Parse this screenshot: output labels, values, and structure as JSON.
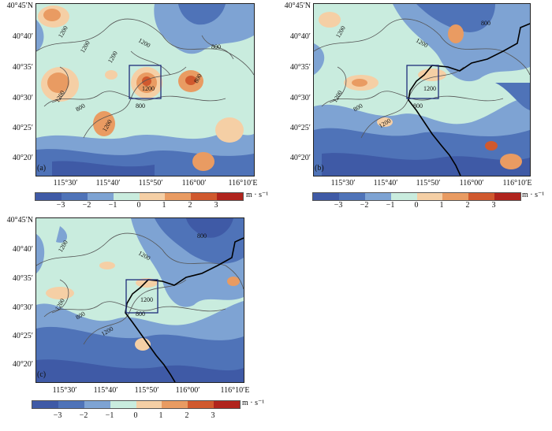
{
  "y_ticks": [
    "40°45′N",
    "40°40′",
    "40°35′",
    "40°30′",
    "40°25′",
    "40°20′"
  ],
  "x_ticks": [
    "115°30′",
    "115°40′",
    "115°50′",
    "116°00′",
    "116°10′E"
  ],
  "panels": [
    {
      "label": "(a)",
      "contour_labels": [
        "1200",
        "1200",
        "1200",
        "800",
        "1200",
        "800",
        "1200",
        "800",
        "1200",
        "1200",
        "800"
      ]
    },
    {
      "label": "(b)",
      "contour_labels": [
        "1200",
        "1200",
        "800",
        "1200",
        "800",
        "1200",
        "800",
        "1200"
      ]
    },
    {
      "label": "(c)",
      "contour_labels": [
        "1200",
        "1200",
        "800",
        "1200",
        "800",
        "1200",
        "800",
        "1200"
      ]
    }
  ],
  "colorbar": {
    "unit": "m · s⁻¹",
    "ticks": [
      "−3",
      "−2",
      "−1",
      "0",
      "1",
      "2",
      "3"
    ],
    "colors": [
      "#3f5aa6",
      "#4f73b8",
      "#7ea3d3",
      "#c9ecde",
      "#f5cfa5",
      "#e99b62",
      "#d0592e",
      "#b0241d"
    ]
  },
  "colors": {
    "contour": "#555555",
    "box": "#1f2d7a",
    "boundary": "#000000"
  }
}
